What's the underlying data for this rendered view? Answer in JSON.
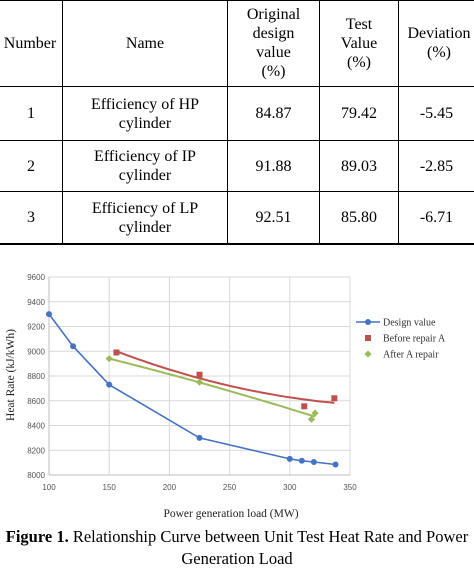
{
  "table": {
    "headers": [
      "Number",
      "Name",
      "Original design value (%)",
      "Test Value (%)",
      "Deviation (%)"
    ],
    "header_lines": {
      "number": [
        "Number"
      ],
      "name": [
        "Name"
      ],
      "original": [
        "Original",
        "design",
        "value",
        "(%)"
      ],
      "test": [
        "Test",
        "Value",
        "(%)"
      ],
      "deviation": [
        "Deviation",
        "(%)"
      ]
    },
    "rows": [
      {
        "number": "1",
        "name": [
          "Efficiency of HP",
          "cylinder"
        ],
        "original": "84.87",
        "test": "79.42",
        "deviation": "-5.45"
      },
      {
        "number": "2",
        "name": [
          "Efficiency of IP",
          "cylinder"
        ],
        "original": "91.88",
        "test": "89.03",
        "deviation": "-2.85"
      },
      {
        "number": "3",
        "name": [
          "Efficiency of LP",
          "cylinder"
        ],
        "original": "92.51",
        "test": "85.80",
        "deviation": "-6.71"
      }
    ]
  },
  "chart_data": {
    "type": "line",
    "xlabel": "Power generation load (MW)",
    "ylabel": "Heat Rate (kJ/kWh)",
    "xlim": [
      100,
      350
    ],
    "ylim": [
      8000,
      9600
    ],
    "xticks": [
      "100",
      "150",
      "200",
      "250",
      "300",
      "350"
    ],
    "yticks": [
      "8000",
      "8200",
      "8400",
      "8600",
      "8800",
      "9000",
      "9200",
      "9400",
      "9600"
    ],
    "grid": true,
    "legend_position": "right",
    "series": [
      {
        "name": "Design value",
        "color": "#4472C4",
        "marker": "circle",
        "trendline": false,
        "points": [
          [
            100,
            9300
          ],
          [
            120,
            9040
          ],
          [
            150,
            8730
          ],
          [
            225,
            8300
          ],
          [
            300,
            8130
          ],
          [
            310,
            8115
          ],
          [
            320,
            8105
          ],
          [
            338,
            8085
          ]
        ]
      },
      {
        "name": "Before repair A",
        "color": "#C0504D",
        "marker": "square",
        "trendline": true,
        "points": [
          [
            156,
            8990
          ],
          [
            225,
            8810
          ],
          [
            312,
            8555
          ],
          [
            337,
            8620
          ]
        ]
      },
      {
        "name": "After A repair",
        "color": "#9BBB59",
        "marker": "diamond",
        "trendline": true,
        "points": [
          [
            150,
            8940
          ],
          [
            225,
            8750
          ],
          [
            318,
            8450
          ],
          [
            321,
            8500
          ]
        ]
      }
    ]
  },
  "caption": {
    "label": "Figure 1.",
    "text": " Relationship Curve between Unit Test Heat Rate and Power Generation Load"
  }
}
